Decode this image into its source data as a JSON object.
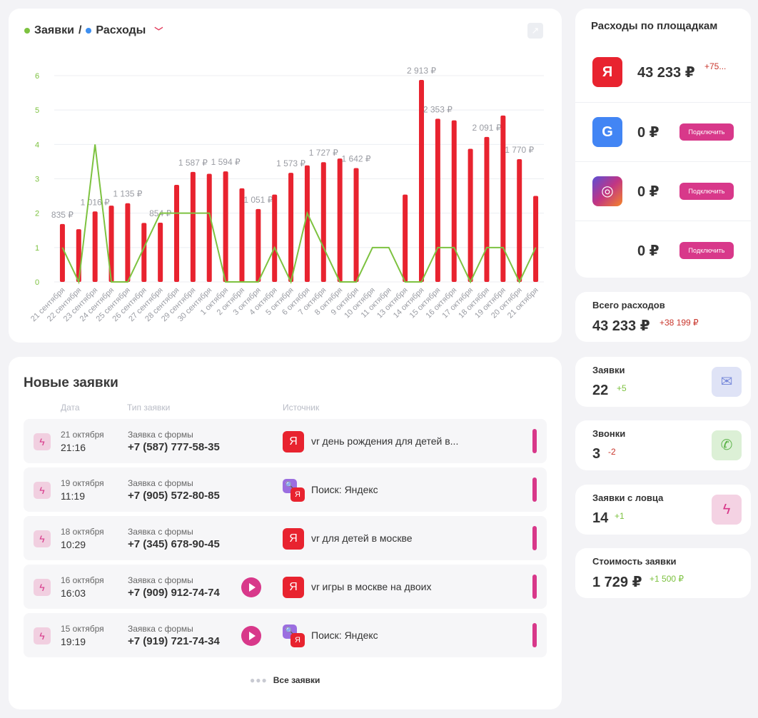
{
  "chart_header": {
    "series1": "Заявки",
    "separator": "/",
    "series2": "Расходы",
    "series1_color": "#7dc240",
    "series2_color": "#3d8ff0"
  },
  "chart_data": {
    "type": "bar",
    "categories": [
      "21 сентября",
      "22 сентября",
      "23 сентября",
      "24 сентября",
      "25 сентября",
      "26 сентября",
      "27 сентября",
      "28 сентября",
      "29 сентября",
      "30 сентября",
      "1 октября",
      "2 октября",
      "3 октября",
      "4 октября",
      "5 октября",
      "6 октября",
      "7 октября",
      "8 октября",
      "9 октября",
      "10 октября",
      "11 октября",
      "13 октября",
      "14 октября",
      "15 октября",
      "16 октября",
      "17 октября",
      "18 октября",
      "19 октября",
      "20 октября",
      "21 октября"
    ],
    "series": [
      {
        "name": "Расходы",
        "type": "bar",
        "color": "#e8232f",
        "values": [
          835,
          760,
          1016,
          1100,
          1135,
          850,
          854,
          1400,
          1587,
          1560,
          1594,
          1350,
          1051,
          1260,
          1573,
          1680,
          1727,
          1780,
          1642,
          0,
          0,
          1260,
          2913,
          2353,
          2330,
          1920,
          2091,
          2400,
          1770,
          1240
        ],
        "labels": [
          "835 ₽",
          "",
          "1 016 ₽",
          "",
          "1 135 ₽",
          "",
          "854 ₽",
          "",
          "1 587 ₽",
          "",
          "1 594 ₽",
          "",
          "1 051 ₽",
          "",
          "1 573 ₽",
          "",
          "1 727 ₽",
          "",
          "1 642 ₽",
          "",
          "",
          "",
          "2 913 ₽",
          "2 353 ₽",
          "",
          "",
          "2 091 ₽",
          "",
          "1 770 ₽",
          ""
        ]
      },
      {
        "name": "Заявки",
        "type": "line",
        "color": "#7dc240",
        "values": [
          1,
          0,
          4,
          0,
          0,
          1,
          2,
          2,
          2,
          2,
          0,
          0,
          0,
          1,
          0,
          2,
          1,
          0,
          0,
          1,
          1,
          0,
          0,
          1,
          1,
          0,
          1,
          1,
          0,
          1
        ]
      }
    ],
    "y_ticks": [
      "0",
      "1",
      "2",
      "3",
      "4",
      "5",
      "6"
    ],
    "ylim": [
      0,
      6
    ],
    "grid": true
  },
  "leads": {
    "title": "Новые заявки",
    "columns": {
      "date": "Дата",
      "type": "Тип заявки",
      "source": "Источник"
    },
    "rows": [
      {
        "date": "21 октября",
        "time": "21:16",
        "type": "Заявка с формы",
        "phone": "+7 (587) 777-58-35",
        "source": "vr день рождения для детей в...",
        "source_kind": "yandex",
        "play": false
      },
      {
        "date": "19 октября",
        "time": "11:19",
        "type": "Заявка с формы",
        "phone": "+7 (905) 572-80-85",
        "source": "Поиск: Яндекс",
        "source_kind": "search",
        "play": false
      },
      {
        "date": "18 октября",
        "time": "10:29",
        "type": "Заявка с формы",
        "phone": "+7 (345) 678-90-45",
        "source": "vr для детей в москве",
        "source_kind": "yandex",
        "play": false
      },
      {
        "date": "16 октября",
        "time": "16:03",
        "type": "Заявка с формы",
        "phone": "+7 (909) 912-74-74",
        "source": "vr игры в москве на двоих",
        "source_kind": "yandex",
        "play": true
      },
      {
        "date": "15 октября",
        "time": "19:19",
        "type": "Заявка с формы",
        "phone": "+7 (919) 721-74-34",
        "source": "Поиск: Яндекс",
        "source_kind": "search",
        "play": true
      }
    ],
    "all_link": "Все заявки"
  },
  "platforms": {
    "title": "Расходы по площадкам",
    "items": [
      {
        "icon": "yandex-icon",
        "glyph": "Я",
        "color": "#e8232f",
        "value": "43 233 ₽",
        "delta": "+75...",
        "connect": ""
      },
      {
        "icon": "google-icon",
        "glyph": "G",
        "color": "#4285f4",
        "value": "0 ₽",
        "delta": "",
        "connect": "Подключить"
      },
      {
        "icon": "instagram-icon",
        "glyph": "◎",
        "color": "#c13584",
        "value": "0 ₽",
        "delta": "",
        "connect": "Подключить"
      },
      {
        "icon": "",
        "glyph": "",
        "color": "",
        "value": "0 ₽",
        "delta": "",
        "connect": "Подключить"
      }
    ]
  },
  "stats": {
    "total": {
      "label": "Всего расходов",
      "value": "43 233 ₽",
      "delta": "+38 199 ₽"
    },
    "leads": {
      "label": "Заявки",
      "value": "22",
      "delta": "+5"
    },
    "calls": {
      "label": "Звонки",
      "value": "3",
      "delta": "-2"
    },
    "catcher": {
      "label": "Заявки с ловца",
      "value": "14",
      "delta": "+1"
    },
    "cost": {
      "label": "Стоимость заявки",
      "value": "1 729 ₽",
      "delta": "+1 500 ₽"
    }
  },
  "colors": {
    "accent": "#d8388a",
    "negative": "#c9362c",
    "positive": "#7dc240"
  }
}
